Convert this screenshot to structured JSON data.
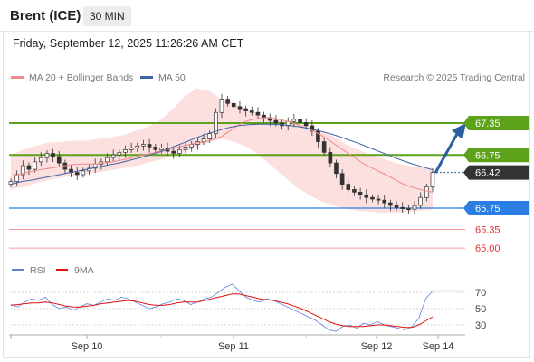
{
  "header": {
    "title": "Brent (ICE)",
    "timeframe": "30 MIN",
    "timestamp": "Friday, September 12, 2025 11:26:26 AM CET"
  },
  "legend": {
    "ma20_label": "MA 20 + Bollinger Bands",
    "ma50_label": "MA 50",
    "copyright": "Research © 2025 Trading Central"
  },
  "colors": {
    "ma20": "#f08a8a",
    "ma50": "#3f64a4",
    "bollinger_fill": "#fcdcdc",
    "resistance": "#5da21a",
    "support": "#2a7de1",
    "target": "#f39a9a",
    "current_price": "#333333",
    "rsi": "#5a84d8",
    "rsi_ma": "#e01010",
    "arrow": "#2c5f9e"
  },
  "chart_data": [
    {
      "type": "line",
      "name": "price",
      "x_ticks": [
        "Sep 10",
        "Sep 11",
        "Sep 12",
        "Sep 14"
      ],
      "ylim": [
        64.9,
        67.95
      ],
      "levels": [
        {
          "value": 67.35,
          "label": "67.35",
          "kind": "resistance"
        },
        {
          "value": 66.75,
          "label": "66.75",
          "kind": "resistance"
        },
        {
          "value": 66.42,
          "label": "66.42",
          "kind": "current"
        },
        {
          "value": 65.75,
          "label": "65.75",
          "kind": "support"
        },
        {
          "value": 65.35,
          "label": "65.35",
          "kind": "target"
        },
        {
          "value": 65.0,
          "label": "65.00",
          "kind": "target"
        }
      ],
      "price_close": [
        66.25,
        66.38,
        66.55,
        66.48,
        66.62,
        66.7,
        66.78,
        66.72,
        66.6,
        66.48,
        66.42,
        66.38,
        66.45,
        66.5,
        66.58,
        66.62,
        66.7,
        66.75,
        66.8,
        66.85,
        66.88,
        66.92,
        66.95,
        66.9,
        66.85,
        66.88,
        66.82,
        66.78,
        66.85,
        66.9,
        66.95,
        67.0,
        67.05,
        67.15,
        67.55,
        67.8,
        67.72,
        67.66,
        67.62,
        67.58,
        67.55,
        67.5,
        67.45,
        67.4,
        67.35,
        67.3,
        67.38,
        67.42,
        67.36,
        67.3,
        67.2,
        67.0,
        66.8,
        66.6,
        66.4,
        66.2,
        66.1,
        66.05,
        66.0,
        65.95,
        65.92,
        65.9,
        65.85,
        65.8,
        65.76,
        65.74,
        65.73,
        65.8,
        65.95,
        66.15,
        66.42
      ],
      "ma20": [
        66.35,
        66.38,
        66.42,
        66.45,
        66.48,
        66.5,
        66.52,
        66.55,
        66.57,
        66.58,
        66.58,
        66.58,
        66.6,
        66.62,
        66.65,
        66.68,
        66.72,
        66.75,
        66.78,
        66.82,
        66.85,
        66.88,
        66.92,
        66.95,
        66.98,
        67.0,
        67.05,
        67.1,
        67.2,
        67.3,
        67.38,
        67.42,
        67.45,
        67.45,
        67.43,
        67.4,
        67.36,
        67.3,
        67.25,
        67.18,
        67.1,
        67.0,
        66.9,
        66.8,
        66.7,
        66.6,
        66.52,
        66.45,
        66.38,
        66.3,
        66.22,
        66.16,
        66.12,
        66.08,
        66.05
      ],
      "ma50": [
        66.2,
        66.25,
        66.28,
        66.32,
        66.36,
        66.4,
        66.44,
        66.48,
        66.52,
        66.56,
        66.6,
        66.65,
        66.7,
        66.76,
        66.82,
        66.9,
        66.98,
        67.06,
        67.14,
        67.2,
        67.26,
        67.3,
        67.32,
        67.33,
        67.33,
        67.32,
        67.3,
        67.27,
        67.23,
        67.18,
        67.12,
        67.05,
        66.98,
        66.9,
        66.82,
        66.74,
        66.66,
        66.59,
        66.53,
        66.47
      ],
      "bb_upper": [
        66.75,
        66.85,
        66.92,
        66.98,
        67.0,
        67.02,
        67.02,
        67.05,
        67.08,
        67.12,
        67.2,
        67.28,
        67.4,
        67.6,
        67.85,
        68.0,
        67.95,
        67.8,
        67.72,
        67.62,
        67.52,
        67.45,
        67.4,
        67.35,
        67.3,
        67.2,
        67.1,
        66.95,
        66.85,
        66.75,
        66.68,
        66.6,
        66.55,
        66.52,
        66.5
      ],
      "bb_lower": [
        66.1,
        66.15,
        66.22,
        66.28,
        66.32,
        66.36,
        66.4,
        66.42,
        66.46,
        66.5,
        66.54,
        66.6,
        66.66,
        66.72,
        66.8,
        66.9,
        67.0,
        67.05,
        67.0,
        66.9,
        66.75,
        66.55,
        66.35,
        66.15,
        66.0,
        65.88,
        65.8,
        65.74,
        65.7,
        65.68,
        65.66,
        65.66,
        65.68,
        65.7,
        65.72
      ]
    },
    {
      "type": "line",
      "name": "RSI",
      "legend": [
        {
          "label": "RSI",
          "series": "rsi"
        },
        {
          "label": "9MA",
          "series": "rsi_ma"
        }
      ],
      "ylim": [
        0,
        100
      ],
      "ticks": [
        70,
        50,
        30
      ],
      "rsi": [
        55,
        52,
        58,
        62,
        60,
        64,
        55,
        50,
        52,
        48,
        52,
        56,
        54,
        58,
        62,
        60,
        64,
        62,
        58,
        54,
        50,
        52,
        56,
        58,
        62,
        60,
        55,
        58,
        62,
        64,
        70,
        76,
        80,
        72,
        64,
        60,
        58,
        62,
        60,
        56,
        52,
        48,
        44,
        40,
        36,
        30,
        24,
        22,
        28,
        30,
        26,
        32,
        30,
        34,
        30,
        28,
        26,
        24,
        28,
        38,
        62,
        72
      ],
      "rsi_ma": [
        54,
        55,
        56,
        57,
        57,
        58,
        57,
        55,
        53,
        52,
        52,
        53,
        54,
        56,
        57,
        58,
        59,
        60,
        59,
        57,
        55,
        54,
        54,
        55,
        57,
        58,
        58,
        58,
        60,
        62,
        64,
        66,
        68,
        68,
        66,
        64,
        62,
        61,
        60,
        58,
        56,
        53,
        50,
        46,
        42,
        38,
        34,
        31,
        29,
        28,
        28,
        28,
        29,
        30,
        30,
        29,
        28,
        27,
        27,
        30,
        35,
        40
      ]
    }
  ]
}
